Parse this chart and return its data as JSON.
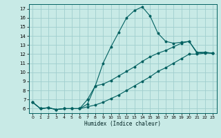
{
  "xlabel": "Humidex (Indice chaleur)",
  "bg_color": "#c8eae6",
  "grid_color": "#a0cece",
  "line_color": "#006060",
  "xlim": [
    -0.5,
    23.5
  ],
  "ylim": [
    5.5,
    17.5
  ],
  "yticks": [
    6,
    7,
    8,
    9,
    10,
    11,
    12,
    13,
    14,
    15,
    16,
    17
  ],
  "xticks": [
    0,
    1,
    2,
    3,
    4,
    5,
    6,
    7,
    8,
    9,
    10,
    11,
    12,
    13,
    14,
    15,
    16,
    17,
    18,
    19,
    20,
    21,
    22,
    23
  ],
  "line1_x": [
    0,
    1,
    2,
    3,
    4,
    5,
    6,
    7,
    8,
    9,
    10,
    11,
    12,
    13,
    14,
    15,
    16,
    17,
    18,
    19,
    20,
    21,
    22,
    23
  ],
  "line1_y": [
    6.7,
    6.0,
    6.1,
    5.9,
    6.0,
    6.0,
    6.0,
    6.5,
    8.5,
    11.0,
    12.8,
    14.4,
    16.0,
    16.8,
    17.2,
    16.2,
    14.3,
    13.4,
    13.2,
    13.3,
    13.4,
    12.1,
    12.2,
    12.1
  ],
  "line2_x": [
    0,
    1,
    2,
    3,
    4,
    5,
    6,
    7,
    8,
    9,
    10,
    11,
    12,
    13,
    14,
    15,
    16,
    17,
    18,
    19,
    20,
    21,
    22,
    23
  ],
  "line2_y": [
    6.7,
    6.0,
    6.1,
    5.9,
    6.0,
    6.0,
    6.0,
    6.2,
    6.4,
    6.7,
    7.1,
    7.5,
    8.0,
    8.5,
    9.0,
    9.5,
    10.1,
    10.5,
    11.0,
    11.5,
    12.0,
    12.0,
    12.1,
    12.1
  ],
  "line3_x": [
    0,
    1,
    2,
    3,
    4,
    5,
    6,
    7,
    8,
    9,
    10,
    11,
    12,
    13,
    14,
    15,
    16,
    17,
    18,
    19,
    20,
    21,
    22,
    23
  ],
  "line3_y": [
    6.7,
    6.0,
    6.1,
    5.9,
    6.0,
    6.0,
    6.0,
    7.0,
    8.5,
    8.7,
    9.1,
    9.6,
    10.1,
    10.6,
    11.2,
    11.7,
    12.1,
    12.4,
    12.8,
    13.2,
    13.4,
    12.2,
    12.2,
    12.1
  ]
}
